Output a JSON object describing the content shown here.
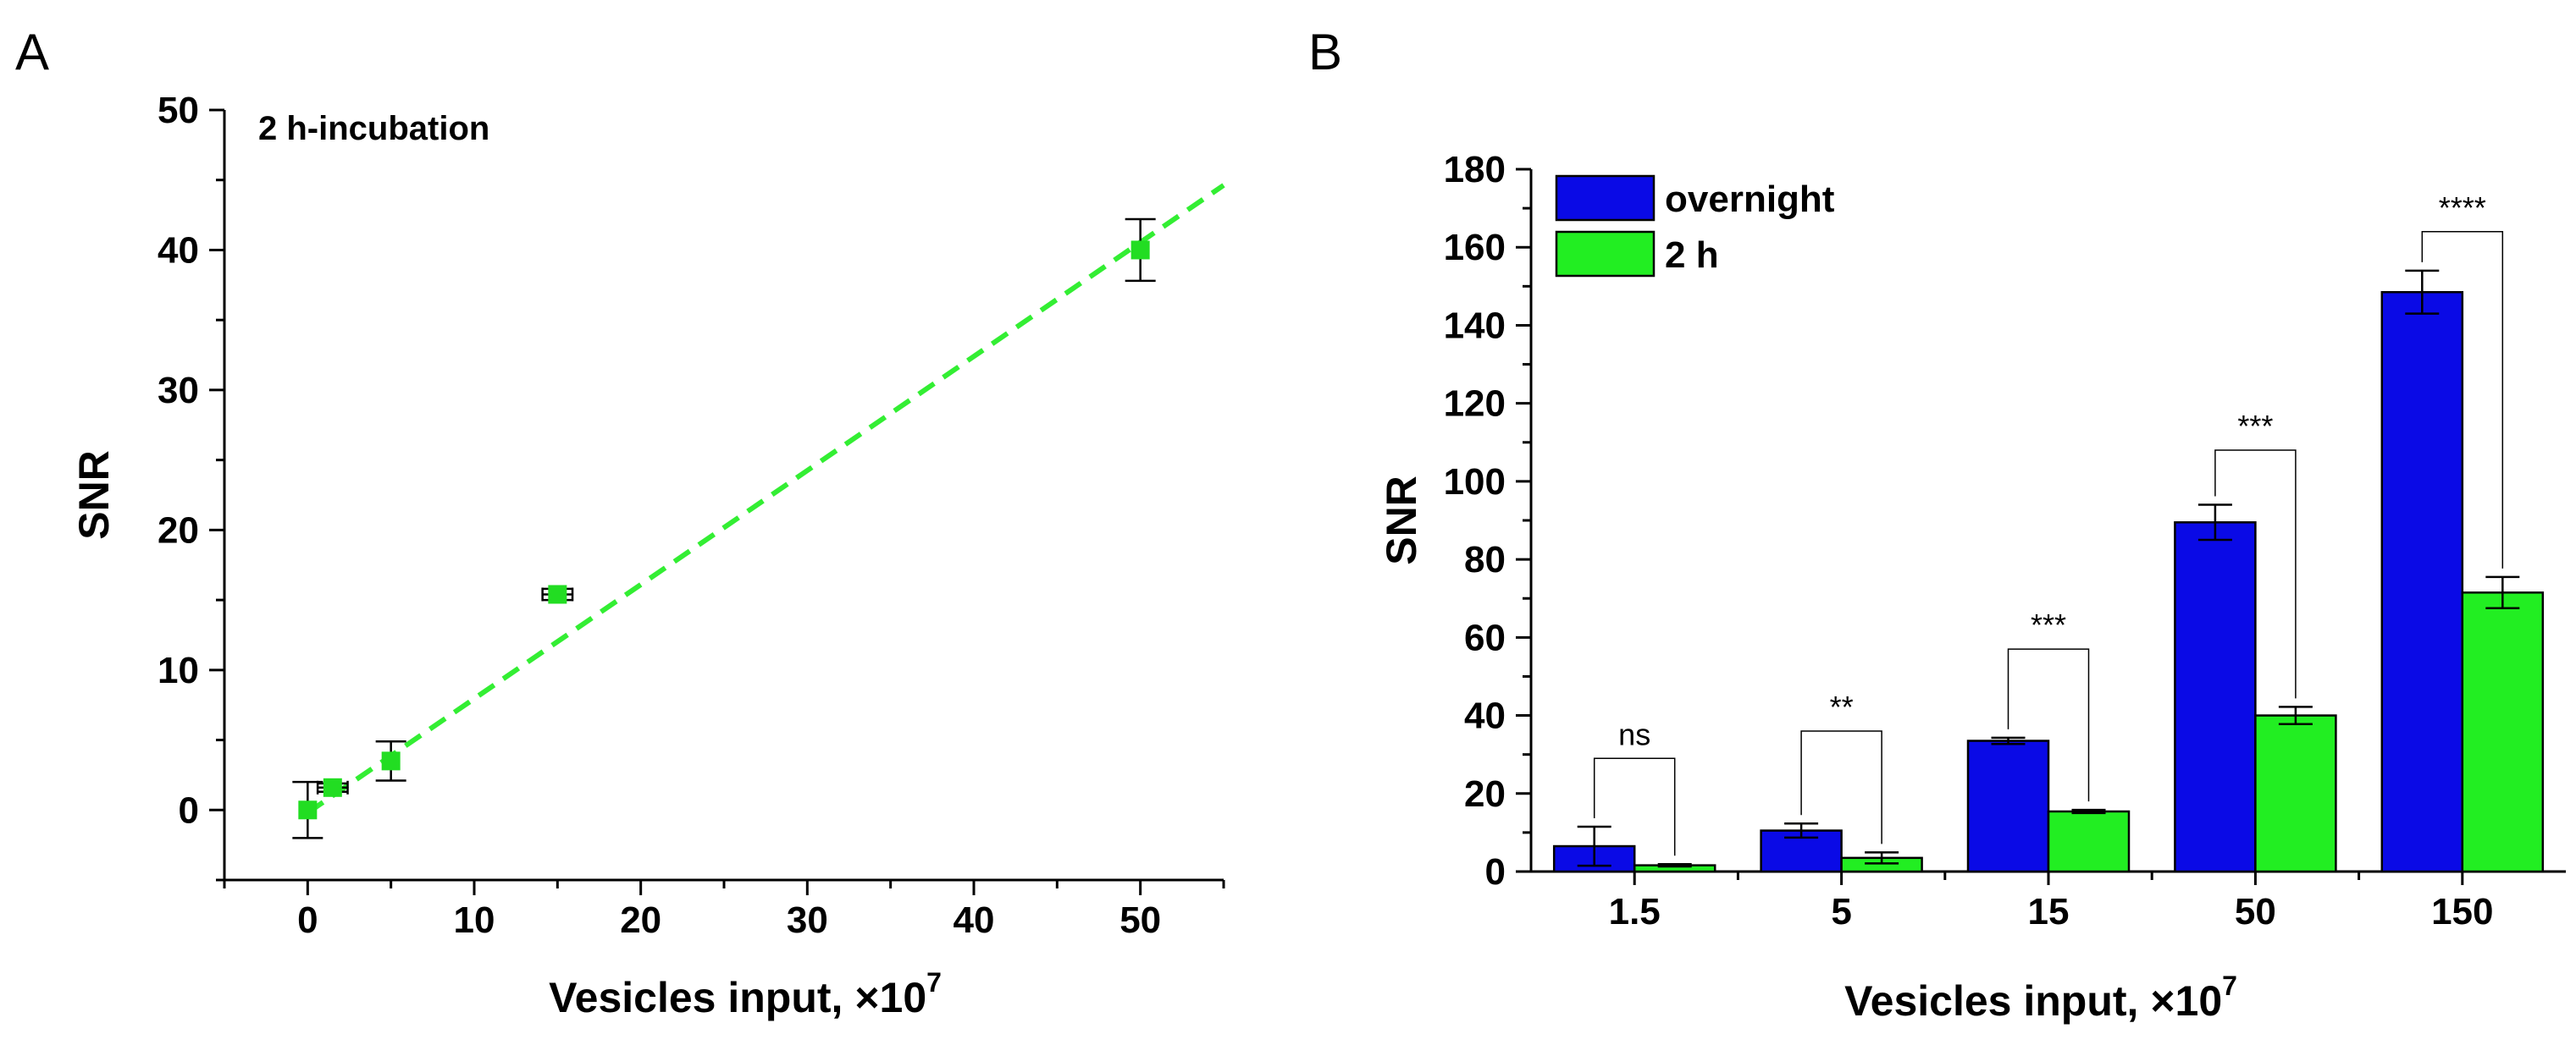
{
  "chart_data": [
    {
      "panel": "A",
      "type": "scatter",
      "annotation": "2 h-incubation",
      "xlabel": "Vesicles input, ×10",
      "xlabel_superscript": "7",
      "ylabel": "SNR",
      "xlim": [
        -5,
        55
      ],
      "ylim": [
        -5,
        50
      ],
      "xticks": [
        0,
        10,
        20,
        30,
        40,
        50
      ],
      "yticks": [
        0,
        10,
        20,
        30,
        40,
        50
      ],
      "grid": false,
      "points": [
        {
          "x": 0,
          "y": 0,
          "yerr": 2.0,
          "xerr": 0
        },
        {
          "x": 1.5,
          "y": 1.6,
          "yerr": 0.3,
          "xerr": 0.9
        },
        {
          "x": 5,
          "y": 3.5,
          "yerr": 1.4,
          "xerr": 0
        },
        {
          "x": 15,
          "y": 15.4,
          "yerr": 0.4,
          "xerr": 0.9
        },
        {
          "x": 50,
          "y": 40,
          "yerr": 2.2,
          "xerr": 0
        }
      ],
      "fit_line": {
        "slope": 0.815,
        "intercept": -0.2,
        "x_from": 0,
        "x_to": 55,
        "style": "dashed"
      },
      "colors": {
        "points": "#22dd22",
        "fit": "#33ee33",
        "errorbar": "#000000"
      }
    },
    {
      "panel": "B",
      "type": "bar",
      "xlabel": "Vesicles input, ×10",
      "xlabel_superscript": "7",
      "ylabel": "SNR",
      "categories": [
        "1.5",
        "5",
        "15",
        "50",
        "150"
      ],
      "ylim": [
        0,
        180
      ],
      "yticks": [
        0,
        20,
        40,
        60,
        80,
        100,
        120,
        140,
        160,
        180
      ],
      "grid": false,
      "legend_position": "top-left",
      "series": [
        {
          "name": "overnight",
          "color": "#0a0ae6",
          "values": [
            6.5,
            10.5,
            33.5,
            89.5,
            148.5
          ],
          "errors": [
            5.0,
            1.8,
            0.8,
            4.5,
            5.5
          ]
        },
        {
          "name": "2 h",
          "color": "#22ee22",
          "values": [
            1.6,
            3.5,
            15.4,
            40,
            71.5
          ],
          "errors": [
            0.3,
            1.4,
            0.4,
            2.2,
            4.0
          ]
        }
      ],
      "significance": [
        "ns",
        "**",
        "***",
        "***",
        "****"
      ],
      "sig_bracket_y": [
        29,
        36,
        57,
        108,
        164
      ]
    }
  ]
}
